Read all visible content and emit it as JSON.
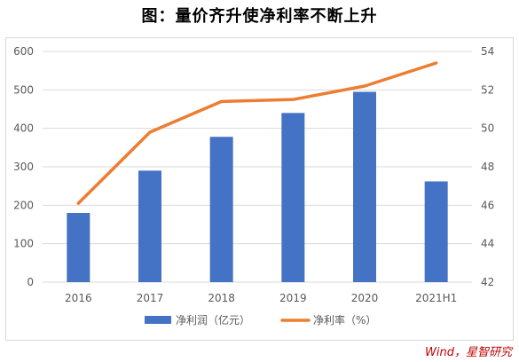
{
  "title": "图：量价齐升使净利率不断上升",
  "source": "Wind，星智研究",
  "colors": {
    "bar": "#4472C4",
    "line": "#ED7D31",
    "grid": "#d9d9d9",
    "axis_text": "#595959"
  },
  "chart_data": {
    "type": "bar+line",
    "categories": [
      "2016",
      "2017",
      "2018",
      "2019",
      "2020",
      "2021H1"
    ],
    "series": [
      {
        "name": "净利润（亿元）",
        "type": "bar",
        "axis": "left",
        "values": [
          180,
          290,
          378,
          440,
          495,
          262
        ]
      },
      {
        "name": "净利率（%）",
        "type": "line",
        "axis": "right",
        "values": [
          46.1,
          49.8,
          51.4,
          51.5,
          52.2,
          53.4
        ]
      }
    ],
    "y_left": {
      "min": 0,
      "max": 600,
      "ticks": [
        0,
        100,
        200,
        300,
        400,
        500,
        600
      ]
    },
    "y_right": {
      "min": 42,
      "max": 54,
      "ticks": [
        42,
        44,
        46,
        48,
        50,
        52,
        54
      ]
    },
    "grid": true,
    "legend": "bottom"
  }
}
